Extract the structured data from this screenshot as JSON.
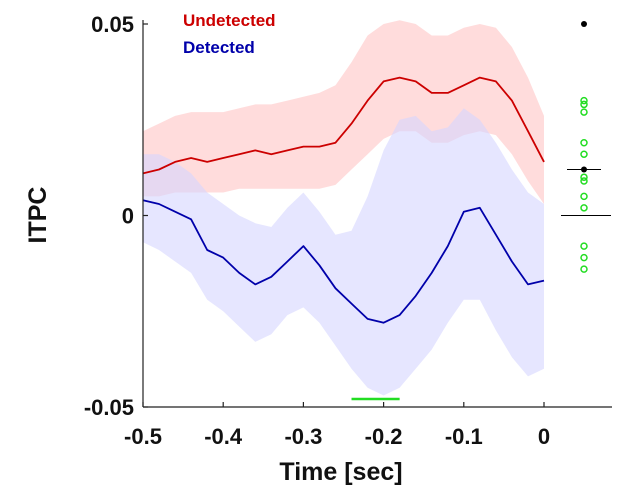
{
  "chart_data": {
    "type": "line",
    "xlabel": "Time [sec]",
    "ylabel": "ITPC",
    "xlim": [
      -0.5,
      0
    ],
    "ylim": [
      -0.05,
      0.05
    ],
    "x_ticks": [
      -0.5,
      -0.4,
      -0.3,
      -0.2,
      -0.1,
      0
    ],
    "x_tick_labels": [
      "-0.5",
      "-0.4",
      "-0.3",
      "-0.2",
      "-0.1",
      "0"
    ],
    "y_ticks": [
      -0.05,
      0,
      0.05
    ],
    "y_tick_labels": [
      "-0.05",
      "0",
      "0.05"
    ],
    "legend_position": "top-left",
    "series": [
      {
        "name": "Undetected",
        "color": "#cc0000",
        "band_color": "#ffd0d0",
        "x": [
          -0.5,
          -0.48,
          -0.46,
          -0.44,
          -0.42,
          -0.4,
          -0.38,
          -0.36,
          -0.34,
          -0.32,
          -0.3,
          -0.28,
          -0.26,
          -0.24,
          -0.22,
          -0.2,
          -0.18,
          -0.16,
          -0.14,
          -0.12,
          -0.1,
          -0.08,
          -0.06,
          -0.04,
          -0.02,
          0
        ],
        "mean": [
          0.011,
          0.012,
          0.014,
          0.015,
          0.014,
          0.015,
          0.016,
          0.017,
          0.016,
          0.017,
          0.018,
          0.018,
          0.019,
          0.024,
          0.03,
          0.035,
          0.036,
          0.035,
          0.032,
          0.032,
          0.034,
          0.036,
          0.035,
          0.03,
          0.022,
          0.014
        ],
        "upper": [
          0.022,
          0.024,
          0.026,
          0.027,
          0.027,
          0.027,
          0.028,
          0.029,
          0.029,
          0.03,
          0.031,
          0.032,
          0.034,
          0.04,
          0.047,
          0.05,
          0.051,
          0.05,
          0.047,
          0.047,
          0.049,
          0.05,
          0.049,
          0.044,
          0.036,
          0.026
        ],
        "lower": [
          0.005,
          0.005,
          0.006,
          0.006,
          0.006,
          0.006,
          0.007,
          0.007,
          0.007,
          0.007,
          0.007,
          0.007,
          0.008,
          0.012,
          0.016,
          0.02,
          0.022,
          0.022,
          0.019,
          0.019,
          0.021,
          0.022,
          0.021,
          0.016,
          0.009,
          0.003
        ]
      },
      {
        "name": "Detected",
        "color": "#0000aa",
        "band_color": "#d6d6ff",
        "x": [
          -0.5,
          -0.48,
          -0.46,
          -0.44,
          -0.42,
          -0.4,
          -0.38,
          -0.36,
          -0.34,
          -0.32,
          -0.3,
          -0.28,
          -0.26,
          -0.24,
          -0.22,
          -0.2,
          -0.18,
          -0.16,
          -0.14,
          -0.12,
          -0.1,
          -0.08,
          -0.06,
          -0.04,
          -0.02,
          0
        ],
        "mean": [
          0.004,
          0.003,
          0.001,
          -0.001,
          -0.009,
          -0.011,
          -0.015,
          -0.018,
          -0.016,
          -0.012,
          -0.008,
          -0.013,
          -0.019,
          -0.023,
          -0.027,
          -0.028,
          -0.026,
          -0.021,
          -0.015,
          -0.008,
          0.001,
          0.002,
          -0.005,
          -0.012,
          -0.018,
          -0.017
        ],
        "upper": [
          0.016,
          0.016,
          0.014,
          0.011,
          0.006,
          0.003,
          0.0,
          -0.002,
          -0.003,
          0.002,
          0.006,
          0.001,
          -0.005,
          -0.004,
          0.005,
          0.017,
          0.025,
          0.026,
          0.022,
          0.023,
          0.028,
          0.025,
          0.019,
          0.012,
          0.006,
          0.003
        ],
        "lower": [
          -0.007,
          -0.009,
          -0.012,
          -0.015,
          -0.022,
          -0.025,
          -0.029,
          -0.033,
          -0.031,
          -0.026,
          -0.024,
          -0.028,
          -0.034,
          -0.04,
          -0.045,
          -0.047,
          -0.045,
          -0.04,
          -0.035,
          -0.028,
          -0.022,
          -0.022,
          -0.03,
          -0.037,
          -0.042,
          -0.04
        ]
      }
    ],
    "significance_bar": {
      "x_start": -0.24,
      "x_end": -0.18,
      "y": -0.05,
      "color": "#22dd22"
    },
    "side_scatter": {
      "green_points": [
        0.03,
        0.029,
        0.027,
        0.019,
        0.016,
        0.01,
        0.009,
        0.005,
        0.002,
        -0.008,
        -0.011,
        -0.014
      ],
      "green_color": "#22dd22",
      "black_points": [
        0.05,
        0.012
      ],
      "black_color": "#000000",
      "mean_line": 0.012,
      "zero_line": 0
    }
  }
}
